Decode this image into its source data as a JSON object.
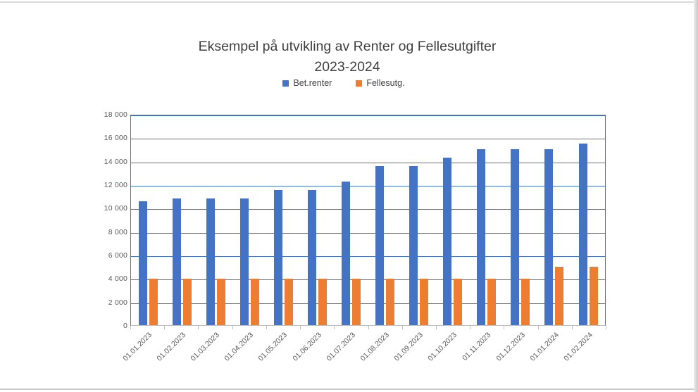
{
  "chart_data": {
    "type": "bar",
    "title_lines": [
      "Eksempel på utvikling av Renter og Fellesutgifter",
      "2023-2024"
    ],
    "categories": [
      "01.01.2023",
      "01.02.2023",
      "01.03.2023",
      "01.04.2023",
      "01.05.2023",
      "01.06.2023",
      "01.07.2023",
      "01.08.2023",
      "01.09.2023",
      "01.10.2023",
      "01.11.2023",
      "01.12.2023",
      "01.01.2024",
      "01.02.2024"
    ],
    "series": [
      {
        "name": "Bet.renter",
        "color": "#4472C4",
        "values": [
          10650,
          10900,
          10900,
          10900,
          11600,
          11600,
          12300,
          13650,
          13650,
          14400,
          15100,
          15100,
          15100,
          15600
        ]
      },
      {
        "name": "Fellesutg.",
        "color": "#ED7D31",
        "values": [
          4000,
          4000,
          4000,
          4000,
          4000,
          4000,
          4000,
          4000,
          4000,
          4000,
          4000,
          4000,
          5000,
          5000
        ]
      }
    ],
    "ylim": [
      0,
      18000
    ],
    "yticks": [
      {
        "value": 0,
        "label": "0"
      },
      {
        "value": 2000,
        "label": "2 000"
      },
      {
        "value": 4000,
        "label": "4 000"
      },
      {
        "value": 6000,
        "label": "6 000"
      },
      {
        "value": 8000,
        "label": "8 000"
      },
      {
        "value": 10000,
        "label": "10 000"
      },
      {
        "value": 12000,
        "label": "12 000"
      },
      {
        "value": 14000,
        "label": "14 000"
      },
      {
        "value": 16000,
        "label": "16 000"
      },
      {
        "value": 18000,
        "label": "18 000"
      }
    ],
    "grid": true,
    "legend_position": "top",
    "xlabel": "",
    "ylabel": ""
  },
  "colors": {
    "gridline": "#4472C4",
    "plot_border": "#4472C4",
    "axis_line": "#BFBFBF",
    "tick_label": "#595959",
    "title_text": "#3F3F3F",
    "legend_text": "#404040"
  }
}
